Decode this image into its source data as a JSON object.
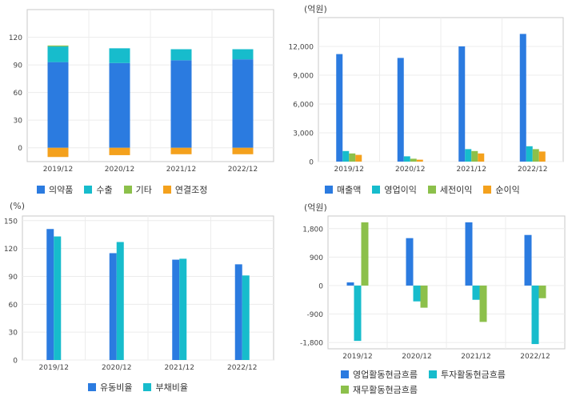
{
  "chart_data": [
    {
      "type": "bar",
      "stacked": true,
      "title": "",
      "unit": "",
      "categories": [
        "2019/12",
        "2020/12",
        "2021/12",
        "2022/12"
      ],
      "ylim": [
        -15,
        150
      ],
      "yticks": [
        0,
        30,
        60,
        90,
        120
      ],
      "series": [
        {
          "name": "의약품",
          "color": "#2b7be0",
          "values": [
            93,
            92,
            95,
            96
          ]
        },
        {
          "name": "수출",
          "color": "#17bccc",
          "values": [
            17,
            16,
            12,
            11
          ]
        },
        {
          "name": "기타",
          "color": "#8cc04b",
          "values": [
            1,
            0,
            0,
            0
          ]
        },
        {
          "name": "연결조정",
          "color": "#f4a11d",
          "values": [
            -10,
            -8,
            -7,
            -7
          ]
        }
      ],
      "legend": "bottom",
      "grid": true
    },
    {
      "type": "bar",
      "stacked": false,
      "title": "",
      "unit": "(억원)",
      "categories": [
        "2019/12",
        "2020/12",
        "2021/12",
        "2022/12"
      ],
      "ylim": [
        0,
        15000
      ],
      "yticks": [
        0,
        3000,
        6000,
        9000,
        12000
      ],
      "yticklabels": [
        "0",
        "3,000",
        "6,000",
        "9,000",
        "12,000"
      ],
      "series": [
        {
          "name": "매출액",
          "color": "#2b7be0",
          "values": [
            11200,
            10800,
            12000,
            13300
          ]
        },
        {
          "name": "영업이익",
          "color": "#17bccc",
          "values": [
            1100,
            550,
            1300,
            1600
          ]
        },
        {
          "name": "세전이익",
          "color": "#8cc04b",
          "values": [
            850,
            300,
            1100,
            1300
          ]
        },
        {
          "name": "순이익",
          "color": "#f4a11d",
          "values": [
            700,
            200,
            850,
            1050
          ]
        }
      ],
      "legend": "bottom",
      "grid": true
    },
    {
      "type": "bar",
      "stacked": false,
      "title": "",
      "unit": "(%)",
      "categories": [
        "2019/12",
        "2020/12",
        "2021/12",
        "2022/12"
      ],
      "ylim": [
        0,
        155
      ],
      "yticks": [
        0,
        30,
        60,
        90,
        120,
        150
      ],
      "series": [
        {
          "name": "유동비율",
          "color": "#2b7be0",
          "values": [
            141,
            115,
            108,
            103
          ]
        },
        {
          "name": "부채비율",
          "color": "#17bccc",
          "values": [
            133,
            127,
            109,
            91
          ]
        }
      ],
      "legend": "bottom",
      "grid": true
    },
    {
      "type": "bar",
      "stacked": false,
      "title": "",
      "unit": "(억원)",
      "categories": [
        "2019/12",
        "2020/12",
        "2021/12",
        "2022/12"
      ],
      "ylim": [
        -2000,
        2200
      ],
      "yticks": [
        -1800,
        -900,
        0,
        900,
        1800
      ],
      "yticklabels": [
        "-1,800",
        "-900",
        "0",
        "900",
        "1,800"
      ],
      "series": [
        {
          "name": "영업활동현금흐름",
          "color": "#2b7be0",
          "values": [
            100,
            1500,
            2000,
            1600
          ]
        },
        {
          "name": "투자활동현금흐름",
          "color": "#17bccc",
          "values": [
            -1750,
            -500,
            -450,
            -1850
          ]
        },
        {
          "name": "재무활동현금흐름",
          "color": "#8cc04b",
          "values": [
            2000,
            -700,
            -1150,
            -400
          ]
        }
      ],
      "legend": "bottom",
      "grid": true
    }
  ]
}
